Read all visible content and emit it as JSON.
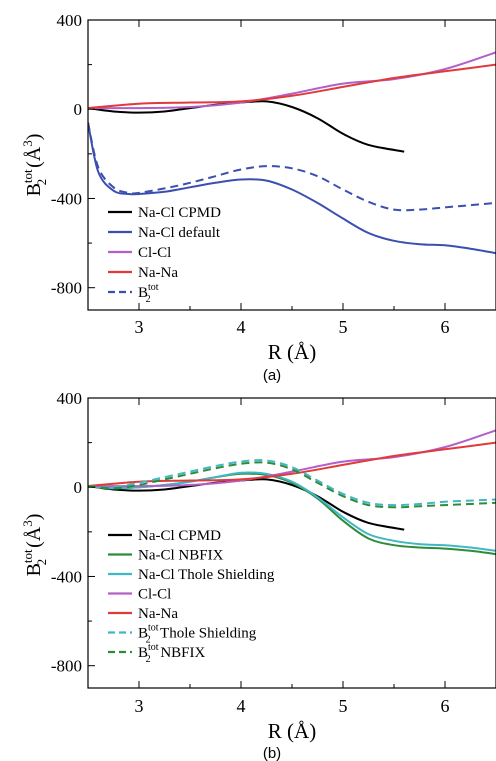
{
  "chart_data": [
    {
      "type": "line",
      "panel_label": "(a)",
      "xlabel": "R (Å)",
      "ylabel_main": "B",
      "ylabel_sub": "2",
      "ylabel_sup": "tot",
      "ylabel_unit": " (Å",
      "ylabel_unit_sup": "3",
      "ylabel_close": ")",
      "xlim": [
        2.5,
        6.5
      ],
      "ylim": [
        -900,
        400
      ],
      "xticks": [
        3,
        4,
        5,
        6
      ],
      "yticks": [
        -800,
        -400,
        0,
        400
      ],
      "legend_placement": "lower-left",
      "series": [
        {
          "name": "Na-Cl CPMD",
          "color": "#000000",
          "dash": "solid",
          "x": [
            2.5,
            2.75,
            3.0,
            3.25,
            3.5,
            3.75,
            4.0,
            4.25,
            4.5,
            4.75,
            5.0,
            5.25,
            5.6
          ],
          "y": [
            5,
            -10,
            -15,
            -10,
            5,
            20,
            30,
            35,
            10,
            -40,
            -110,
            -160,
            -190
          ]
        },
        {
          "name": "Na-Cl default",
          "color": "#3b4fb0",
          "dash": "solid",
          "x": [
            2.5,
            2.6,
            2.75,
            2.9,
            3.0,
            3.25,
            3.5,
            3.75,
            4.0,
            4.25,
            4.5,
            4.75,
            5.0,
            5.25,
            5.5,
            5.75,
            6.0,
            6.25,
            6.5
          ],
          "y": [
            -60,
            -280,
            -365,
            -380,
            -380,
            -370,
            -350,
            -330,
            -315,
            -320,
            -360,
            -420,
            -490,
            -555,
            -590,
            -605,
            -610,
            -625,
            -645
          ]
        },
        {
          "name": "Cl-Cl",
          "color": "#b45ec8",
          "dash": "solid",
          "x": [
            2.5,
            3.0,
            3.5,
            4.0,
            4.5,
            5.0,
            5.5,
            6.0,
            6.5
          ],
          "y": [
            5,
            5,
            10,
            30,
            70,
            115,
            135,
            180,
            255
          ]
        },
        {
          "name": "Na-Na",
          "color": "#e03a3a",
          "dash": "solid",
          "x": [
            2.5,
            3.0,
            3.5,
            4.0,
            4.5,
            5.0,
            5.5,
            6.0,
            6.5
          ],
          "y": [
            5,
            25,
            30,
            35,
            60,
            100,
            140,
            170,
            200
          ]
        },
        {
          "name": "B",
          "name_sub": "2",
          "name_sup": "tot",
          "color": "#3b4fb0",
          "dash": "dashed",
          "x": [
            2.5,
            2.6,
            2.75,
            2.9,
            3.0,
            3.25,
            3.5,
            3.75,
            4.0,
            4.25,
            4.5,
            4.75,
            5.0,
            5.25,
            5.5,
            5.75,
            6.0,
            6.25,
            6.5
          ],
          "y": [
            -60,
            -260,
            -350,
            -375,
            -375,
            -355,
            -330,
            -300,
            -270,
            -255,
            -265,
            -300,
            -360,
            -415,
            -450,
            -450,
            -440,
            -430,
            -420
          ]
        }
      ]
    },
    {
      "type": "line",
      "panel_label": "(b)",
      "xlabel": "R (Å)",
      "ylabel_main": "B",
      "ylabel_sub": "2",
      "ylabel_sup": "tot",
      "ylabel_unit": " (Å",
      "ylabel_unit_sup": "3",
      "ylabel_close": ")",
      "xlim": [
        2.5,
        6.5
      ],
      "ylim": [
        -900,
        400
      ],
      "xticks": [
        3,
        4,
        5,
        6
      ],
      "yticks": [
        -800,
        -400,
        0,
        400
      ],
      "legend_placement": "lower-left",
      "series": [
        {
          "name": "Na-Cl CPMD",
          "color": "#000000",
          "dash": "solid",
          "x": [
            2.5,
            2.75,
            3.0,
            3.25,
            3.5,
            3.75,
            4.0,
            4.25,
            4.5,
            4.75,
            5.0,
            5.25,
            5.6
          ],
          "y": [
            5,
            -10,
            -15,
            -10,
            5,
            20,
            30,
            35,
            10,
            -40,
            -110,
            -160,
            -190
          ]
        },
        {
          "name": "Na-Cl NBFIX",
          "color": "#2e8b3a",
          "dash": "solid",
          "x": [
            2.5,
            2.75,
            3.0,
            3.25,
            3.5,
            3.75,
            4.0,
            4.25,
            4.5,
            4.75,
            5.0,
            5.25,
            5.5,
            5.75,
            6.0,
            6.25,
            6.5
          ],
          "y": [
            5,
            -5,
            0,
            10,
            25,
            45,
            60,
            55,
            20,
            -50,
            -150,
            -230,
            -260,
            -270,
            -275,
            -285,
            -300
          ]
        },
        {
          "name": "Na-Cl Thole Shielding",
          "color": "#3fb8c4",
          "dash": "solid",
          "x": [
            2.5,
            2.75,
            3.0,
            3.25,
            3.5,
            3.75,
            4.0,
            4.25,
            4.5,
            4.75,
            5.0,
            5.25,
            5.5,
            5.75,
            6.0,
            6.25,
            6.5
          ],
          "y": [
            5,
            -5,
            0,
            10,
            25,
            45,
            65,
            60,
            25,
            -45,
            -135,
            -210,
            -240,
            -255,
            -260,
            -270,
            -285
          ]
        },
        {
          "name": "Cl-Cl",
          "color": "#b45ec8",
          "dash": "solid",
          "x": [
            2.5,
            3.0,
            3.5,
            4.0,
            4.5,
            5.0,
            5.5,
            6.0,
            6.5
          ],
          "y": [
            5,
            5,
            10,
            30,
            70,
            115,
            135,
            180,
            255
          ]
        },
        {
          "name": "Na-Na",
          "color": "#e03a3a",
          "dash": "solid",
          "x": [
            2.5,
            3.0,
            3.5,
            4.0,
            4.5,
            5.0,
            5.5,
            6.0,
            6.5
          ],
          "y": [
            5,
            25,
            30,
            35,
            60,
            100,
            140,
            170,
            200
          ]
        },
        {
          "name": "B",
          "name_sub": "2",
          "name_sup": "tot",
          "name_suffix": " Thole Shielding",
          "color": "#3fb8c4",
          "dash": "dashed",
          "x": [
            2.5,
            2.75,
            3.0,
            3.25,
            3.5,
            3.75,
            4.0,
            4.25,
            4.5,
            4.75,
            5.0,
            5.25,
            5.5,
            5.75,
            6.0,
            6.25,
            6.5
          ],
          "y": [
            5,
            0,
            20,
            45,
            70,
            95,
            115,
            120,
            90,
            30,
            -30,
            -70,
            -80,
            -75,
            -65,
            -60,
            -55
          ]
        },
        {
          "name": "B",
          "name_sub": "2",
          "name_sup": "tot",
          "name_suffix": "  NBFIX",
          "color": "#2e8b3a",
          "dash": "dashed",
          "x": [
            2.5,
            2.75,
            3.0,
            3.25,
            3.5,
            3.75,
            4.0,
            4.25,
            4.5,
            4.75,
            5.0,
            5.25,
            5.5,
            5.75,
            6.0,
            6.25,
            6.5
          ],
          "y": [
            5,
            -5,
            10,
            35,
            60,
            85,
            105,
            110,
            80,
            20,
            -40,
            -80,
            -90,
            -85,
            -80,
            -75,
            -70
          ]
        }
      ]
    }
  ]
}
